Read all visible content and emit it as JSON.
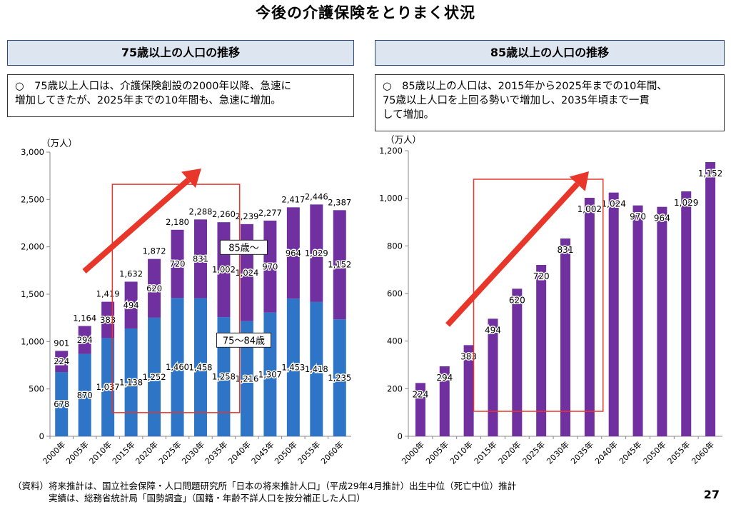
{
  "title": "今後の介護保険をとりまく状況",
  "page_number": "27",
  "source_note": "（資料）将来推計は、国立社会保障・人口問題研究所「日本の将来推計人口」（平成29年4月推計）出生中位（死亡中位）推計\n　　　　実績は、総務省統計局「国勢調査」（国籍・年齢不詳人口を按分補正した人口）",
  "left_panel": {
    "header": "75歳以上の人口の推移",
    "note": "○　75歳以上人口は、介護保険創設の2000年以降、急速に\n増加してきたが、2025年までの10年間も、急速に増加。"
  },
  "right_panel": {
    "header": "85歳以上の人口の推移",
    "note": "○　85歳以上の人口は、2015年から2025年までの10年間、\n75歳以上人口を上回る勢いで増加し、2035年頃まで一貫\nして増加。"
  },
  "colors": {
    "blue": "#2e75c7",
    "purple": "#7030a0",
    "arrow": "#e8372a",
    "highlight_box": "#e8372a"
  },
  "chart_data": [
    {
      "type": "bar",
      "stacked": true,
      "unit_label": "（万人）",
      "categories": [
        "2000年",
        "2005年",
        "2010年",
        "2015年",
        "2020年",
        "2025年",
        "2030年",
        "2035年",
        "2040年",
        "2045年",
        "2050年",
        "2055年",
        "2060年"
      ],
      "series": [
        {
          "name": "75〜84歳",
          "values": [
            678,
            870,
            1037,
            1138,
            1252,
            1460,
            1458,
            1258,
            1216,
            1307,
            1453,
            1418,
            1235
          ]
        },
        {
          "name": "85歳〜",
          "values": [
            224,
            294,
            383,
            494,
            620,
            720,
            831,
            1002,
            1024,
            970,
            964,
            1029,
            1152
          ]
        }
      ],
      "totals": [
        901,
        1164,
        1419,
        1632,
        1872,
        2180,
        2288,
        2260,
        2239,
        2277,
        2417,
        2446,
        2387
      ],
      "ylim": [
        0,
        3000
      ],
      "yticks": [
        0,
        500,
        1000,
        1500,
        2000,
        2500,
        3000
      ],
      "ytick_labels": [
        "0",
        "500",
        "1,000",
        "1,500",
        "2,000",
        "2,500",
        "3,000"
      ],
      "legend_placement": "inline labels on bars"
    },
    {
      "type": "bar",
      "unit_label": "（万人）",
      "categories": [
        "2000年",
        "2005年",
        "2010年",
        "2015年",
        "2020年",
        "2025年",
        "2030年",
        "2035年",
        "2040年",
        "2045年",
        "2050年",
        "2055年",
        "2060年"
      ],
      "series": [
        {
          "name": "85歳〜",
          "values": [
            224,
            294,
            383,
            494,
            620,
            720,
            831,
            1002,
            1024,
            970,
            964,
            1029,
            1152
          ]
        }
      ],
      "ylim": [
        0,
        1200
      ],
      "yticks": [
        0,
        200,
        400,
        600,
        800,
        1000,
        1200
      ],
      "ytick_labels": [
        "0",
        "200",
        "400",
        "600",
        "800",
        "1,000",
        "1,200"
      ]
    }
  ]
}
